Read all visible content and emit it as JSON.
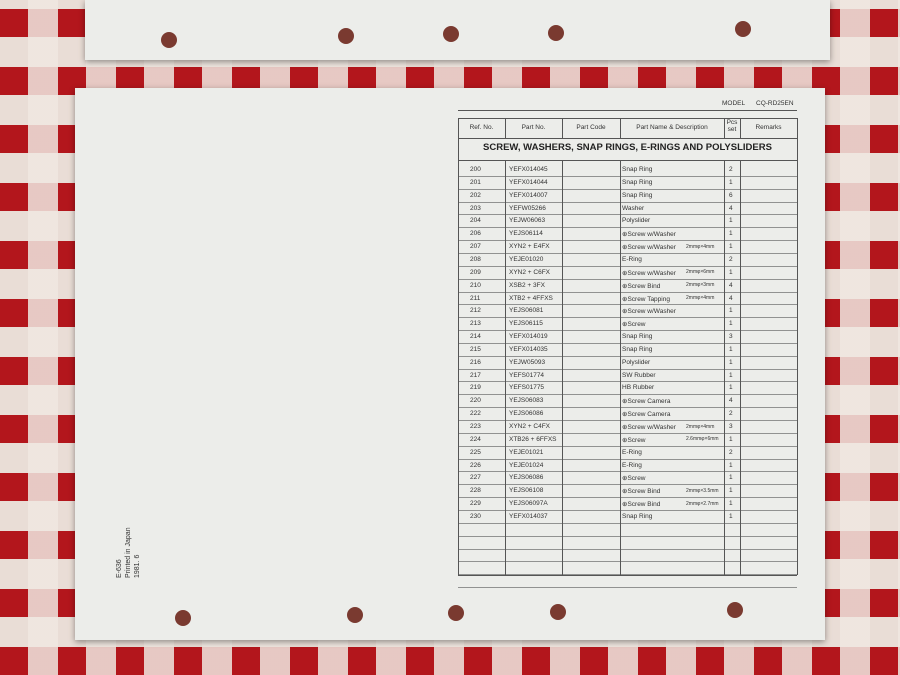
{
  "header": {
    "model_label": "MODEL",
    "model": "CQ-RD25EN"
  },
  "columns": [
    "Ref. No.",
    "Part No.",
    "Part Code",
    "Part Name & Description",
    "Pcs set",
    "Remarks"
  ],
  "title": "SCREW, WASHERS, SNAP RINGS, E-RINGS AND POLYSLIDERS",
  "rows": [
    {
      "ref": "200",
      "part_no": "YEFX014045",
      "name": "Snap Ring",
      "pcs": 2
    },
    {
      "ref": "201",
      "part_no": "YEFX014044",
      "name": "Snap Ring",
      "pcs": 1
    },
    {
      "ref": "202",
      "part_no": "YEFX014007",
      "name": "Snap Ring",
      "pcs": 6
    },
    {
      "ref": "203",
      "part_no": "YEFW05266",
      "name": "Washer",
      "pcs": 4
    },
    {
      "ref": "204",
      "part_no": "YEJW06063",
      "name": "Polyslider",
      "pcs": 1
    },
    {
      "ref": "206",
      "part_no": "YEJS06114",
      "name": "⊕Screw w/Washer",
      "pcs": 1
    },
    {
      "ref": "207",
      "part_no": "XYN2 + E4FX",
      "name": "⊕Screw w/Washer",
      "size": "2mmφ×4mm",
      "pcs": 1
    },
    {
      "ref": "208",
      "part_no": "YEJE01020",
      "name": "E-Ring",
      "pcs": 2
    },
    {
      "ref": "209",
      "part_no": "XYN2 + C6FX",
      "name": "⊕Screw w/Washer",
      "size": "2mmφ×6mm",
      "pcs": 1
    },
    {
      "ref": "210",
      "part_no": "XSB2 + 3FX",
      "name": "⊕Screw Bind",
      "size": "2mmφ×3mm",
      "pcs": 4
    },
    {
      "ref": "211",
      "part_no": "XTB2 + 4FFXS",
      "name": "⊕Screw Tapping",
      "size": "2mmφ×4mm",
      "pcs": 4
    },
    {
      "ref": "212",
      "part_no": "YEJS06081",
      "name": "⊕Screw w/Washer",
      "pcs": 1
    },
    {
      "ref": "213",
      "part_no": "YEJS06115",
      "name": "⊕Screw",
      "pcs": 1
    },
    {
      "ref": "214",
      "part_no": "YEFX014019",
      "name": "Snap Ring",
      "pcs": 3
    },
    {
      "ref": "215",
      "part_no": "YEFX014035",
      "name": "Snap Ring",
      "pcs": 1
    },
    {
      "ref": "216",
      "part_no": "YEJW05093",
      "name": "Polyslider",
      "pcs": 1
    },
    {
      "ref": "217",
      "part_no": "YEFS01774",
      "name": "SW Rubber",
      "pcs": 1
    },
    {
      "ref": "219",
      "part_no": "YEFS01775",
      "name": "HB Rubber",
      "pcs": 1
    },
    {
      "ref": "220",
      "part_no": "YEJS06083",
      "name": "⊕Screw Camera",
      "pcs": 4
    },
    {
      "ref": "222",
      "part_no": "YEJS06086",
      "name": "⊕Screw Camera",
      "pcs": 2
    },
    {
      "ref": "223",
      "part_no": "XYN2 + C4FX",
      "name": "⊕Screw w/Washer",
      "size": "2mmφ×4mm",
      "pcs": 3
    },
    {
      "ref": "224",
      "part_no": "XTB26 + 6FFXS",
      "name": "⊕Screw",
      "size": "2.6mmφ×6mm",
      "pcs": 1
    },
    {
      "ref": "225",
      "part_no": "YEJE01021",
      "name": "E-Ring",
      "pcs": 2
    },
    {
      "ref": "226",
      "part_no": "YEJE01024",
      "name": "E-Ring",
      "pcs": 1
    },
    {
      "ref": "227",
      "part_no": "YEJS06086",
      "name": "⊕Screw",
      "pcs": 1
    },
    {
      "ref": "228",
      "part_no": "YEJS06108",
      "name": "⊕Screw Bind",
      "size": "2mmφ×3.5mm",
      "pcs": 1
    },
    {
      "ref": "229",
      "part_no": "YEJS06097A",
      "name": "⊕Screw Bind",
      "size": "2mmφ×2.7mm",
      "pcs": 1
    },
    {
      "ref": "230",
      "part_no": "YEFX014037",
      "name": "Snap Ring",
      "pcs": 1
    }
  ],
  "footer": [
    "E-636",
    "Printed in Japan",
    "1981. 6"
  ]
}
